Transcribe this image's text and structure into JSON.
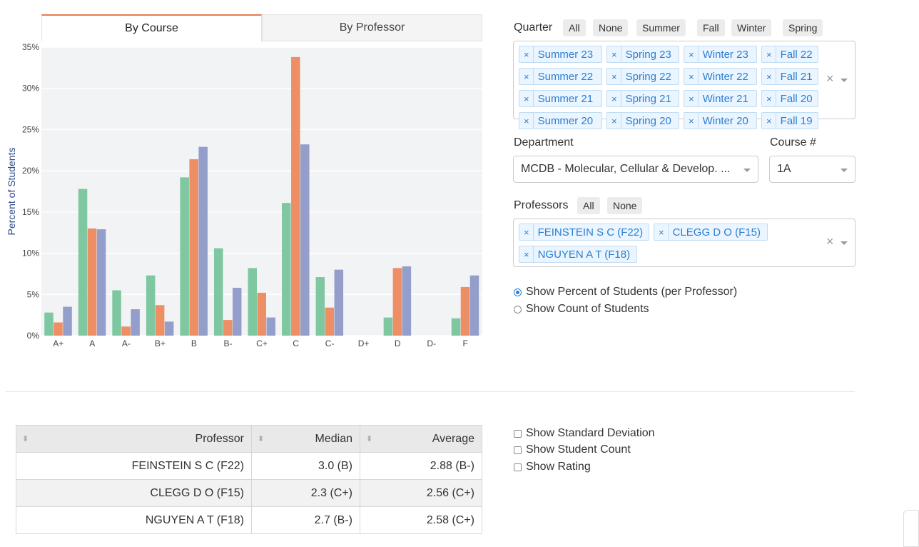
{
  "tabs": [
    "By Course",
    "By Professor"
  ],
  "chart_data": {
    "type": "bar",
    "ylabel": "Percent of Students",
    "ylim": [
      0,
      35
    ],
    "yticks": [
      "0%",
      "5%",
      "10%",
      "15%",
      "20%",
      "25%",
      "30%",
      "35%"
    ],
    "categories": [
      "A+",
      "A",
      "A-",
      "B+",
      "B",
      "B-",
      "C+",
      "C",
      "C-",
      "D+",
      "D",
      "D-",
      "F"
    ],
    "colors": [
      "#7fc7a1",
      "#ee8e64",
      "#939ecb"
    ],
    "series": [
      {
        "values": [
          2.8,
          17.8,
          5.5,
          7.3,
          19.2,
          10.6,
          8.2,
          16.1,
          7.1,
          0,
          2.2,
          0,
          2.1
        ]
      },
      {
        "values": [
          1.6,
          13.0,
          1.1,
          3.7,
          21.4,
          1.9,
          5.2,
          33.8,
          3.4,
          0,
          8.2,
          0,
          5.9
        ]
      },
      {
        "values": [
          3.5,
          12.9,
          3.2,
          1.7,
          22.9,
          5.8,
          2.2,
          23.2,
          8.0,
          0,
          8.4,
          0,
          7.3
        ]
      }
    ]
  },
  "quarter": {
    "label": "Quarter",
    "buttons": [
      "All",
      "None",
      "Summer",
      "Fall",
      "Winter",
      "Spring"
    ],
    "selected": [
      "Summer 23",
      "Spring 23",
      "Winter 23",
      "Fall 22",
      "Summer 22",
      "Spring 22",
      "Winter 22",
      "Fall 21",
      "Summer 21",
      "Spring 21",
      "Winter 21",
      "Fall 20",
      "Summer 20",
      "Spring 20",
      "Winter 20",
      "Fall 19"
    ]
  },
  "department": {
    "label": "Department",
    "value": "MCDB - Molecular, Cellular & Develop. ..."
  },
  "course": {
    "label": "Course #",
    "value": "1A"
  },
  "professors": {
    "label": "Professors",
    "buttons": [
      "All",
      "None"
    ],
    "selected": [
      "FEINSTEIN S C (F22)",
      "CLEGG D O (F15)",
      "NGUYEN A T (F18)"
    ]
  },
  "display_mode": {
    "options": [
      "Show Percent of Students (per Professor)",
      "Show Count of Students"
    ],
    "selected": 0
  },
  "table": {
    "headers": [
      "Professor",
      "Median",
      "Average"
    ],
    "rows": [
      [
        "FEINSTEIN S C (F22)",
        "3.0 (B)",
        "2.88 (B-)"
      ],
      [
        "CLEGG D O (F15)",
        "2.3 (C+)",
        "2.56 (C+)"
      ],
      [
        "NGUYEN A T (F18)",
        "2.7 (B-)",
        "2.58 (C+)"
      ]
    ]
  },
  "table_options": [
    "Show Standard Deviation",
    "Show Student Count",
    "Show Rating"
  ],
  "icons": {
    "remove": "×",
    "clear": "×"
  }
}
